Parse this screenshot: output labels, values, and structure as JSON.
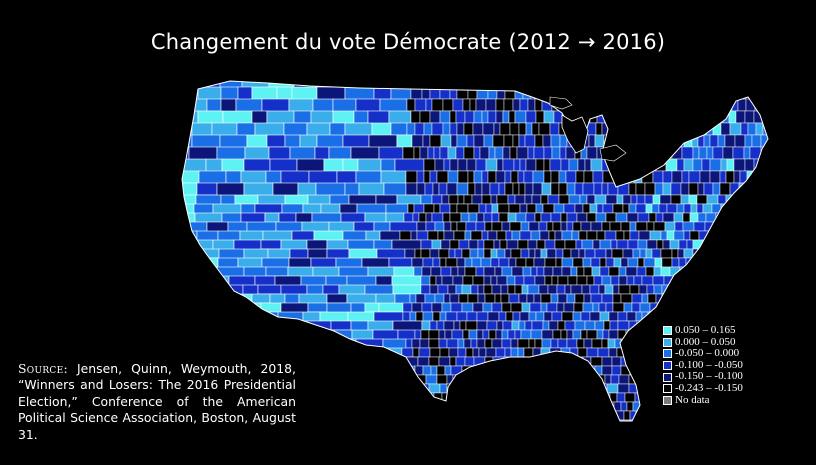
{
  "title": "Changement du vote Démocrate (2012 → 2016)",
  "legend": {
    "items": [
      {
        "label": "0.050 – 0.165",
        "color": "#5ef2f2"
      },
      {
        "label": "0.000 – 0.050",
        "color": "#3aaeea"
      },
      {
        "label": "-0.050 – 0.000",
        "color": "#1a6fe6"
      },
      {
        "label": "-0.100 – -0.050",
        "color": "#1530c8"
      },
      {
        "label": "-0.150 – -0.100",
        "color": "#0b1678"
      },
      {
        "label": "-0.243 – -0.150",
        "color": "#000000"
      },
      {
        "label": "No data",
        "color": "#7a7a7a"
      }
    ]
  },
  "source": {
    "label": "Source:",
    "text": "Jensen, Quinn, Weymouth, 2018, “Winners and Losers: The 2016 Presidential Election,” Conference of the American Political Science Association, Boston, August 31."
  }
}
